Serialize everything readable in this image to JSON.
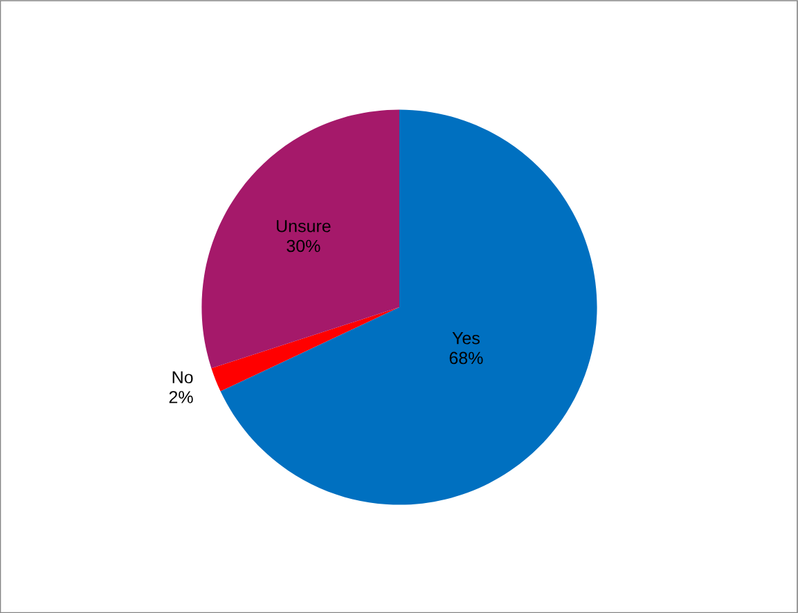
{
  "chart_data": {
    "type": "pie",
    "categories": [
      "Yes",
      "No",
      "Unsure"
    ],
    "values": [
      68,
      2,
      30
    ],
    "colors": [
      "#0070c0",
      "#ff0000",
      "#a5196a"
    ],
    "value_labels": [
      "68%",
      "2%",
      "30%"
    ]
  }
}
